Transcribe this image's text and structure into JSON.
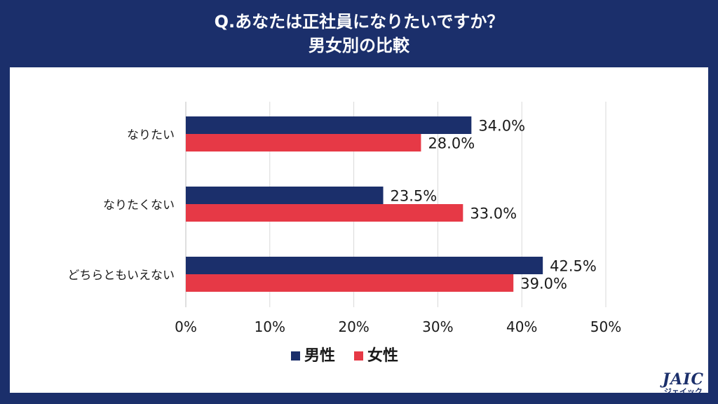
{
  "title": {
    "line1": "Q.あなたは正社員になりたいですか？",
    "line2": "男女別の比較"
  },
  "colors": {
    "male": "#1b2f6b",
    "female": "#e63946",
    "grid": "#d9d9d9",
    "background": "#1b2f6b"
  },
  "chart_data": {
    "type": "bar",
    "orientation": "horizontal",
    "categories": [
      "なりたい",
      "なりたくない",
      "どちらともいえない"
    ],
    "series": [
      {
        "name": "男性",
        "values": [
          34.0,
          23.5,
          42.5
        ],
        "color": "#1b2f6b"
      },
      {
        "name": "女性",
        "values": [
          28.0,
          33.0,
          39.0
        ],
        "color": "#e63946"
      }
    ],
    "xlim": [
      0,
      50
    ],
    "xticks": [
      "0%",
      "10%",
      "20%",
      "30%",
      "40%",
      "50%"
    ],
    "xtick_values": [
      0,
      10,
      20,
      30,
      40,
      50
    ],
    "data_labels": [
      [
        "34.0%",
        "23.5%",
        "42.5%"
      ],
      [
        "28.0%",
        "33.0%",
        "39.0%"
      ]
    ],
    "grid": true,
    "legend": {
      "position": "bottom",
      "entries": [
        "男性",
        "女性"
      ]
    }
  },
  "logo": {
    "main": "JAIC",
    "sub": "ジェイック"
  }
}
